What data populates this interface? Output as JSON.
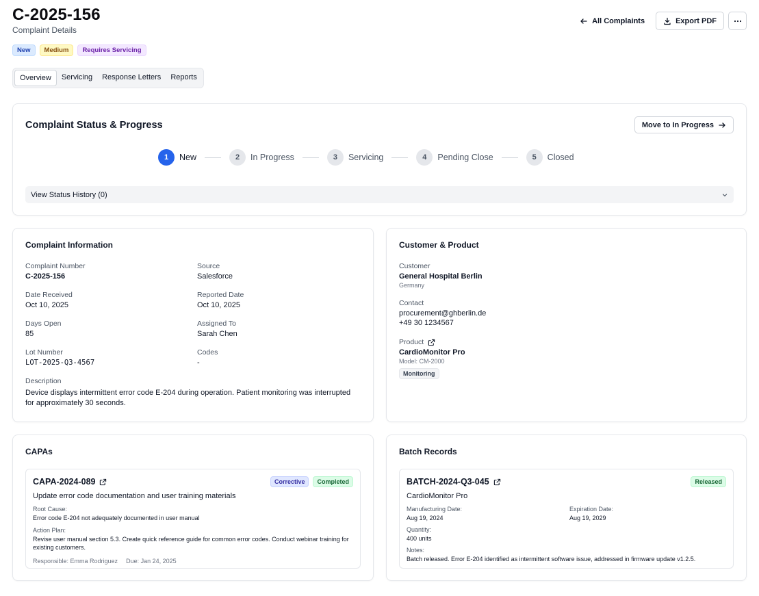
{
  "header": {
    "title": "C-2025-156",
    "subtitle": "Complaint Details"
  },
  "badges": [
    "New",
    "Medium",
    "Requires Servicing"
  ],
  "actions": {
    "back_label": "All Complaints",
    "export_label": "Export PDF"
  },
  "tabs": [
    "Overview",
    "Servicing",
    "Response Letters",
    "Reports"
  ],
  "status": {
    "title": "Complaint Status & Progress",
    "move_label": "Move to In Progress",
    "steps": [
      {
        "num": "1",
        "label": "New"
      },
      {
        "num": "2",
        "label": "In Progress"
      },
      {
        "num": "3",
        "label": "Servicing"
      },
      {
        "num": "4",
        "label": "Pending Close"
      },
      {
        "num": "5",
        "label": "Closed"
      }
    ],
    "history_label": "View Status History (0)"
  },
  "info": {
    "title": "Complaint Information",
    "complaint_number_label": "Complaint Number",
    "complaint_number": "C-2025-156",
    "source_label": "Source",
    "source": "Salesforce",
    "date_received_label": "Date Received",
    "date_received": "Oct 10, 2025",
    "reported_date_label": "Reported Date",
    "reported_date": "Oct 10, 2025",
    "days_open_label": "Days Open",
    "days_open": "85",
    "assigned_label": "Assigned To",
    "assigned": "Sarah Chen",
    "lot_label": "Lot Number",
    "lot": "LOT-2025-Q3-4567",
    "codes_label": "Codes",
    "codes": "-",
    "description_label": "Description",
    "description": "Device displays intermittent error code E-204 during operation. Patient monitoring was interrupted for approximately 30 seconds."
  },
  "customer": {
    "title": "Customer & Product",
    "customer_label": "Customer",
    "customer_name": "General Hospital Berlin",
    "country": "Germany",
    "contact_label": "Contact",
    "email": "procurement@ghberlin.de",
    "phone": "+49 30 1234567",
    "product_label": "Product",
    "product_name": "CardioMonitor Pro",
    "model": "Model: CM-2000",
    "category": "Monitoring"
  },
  "capas": {
    "title": "CAPAs",
    "item": {
      "id": "CAPA-2024-089",
      "type": "Corrective",
      "status": "Completed",
      "title": "Update error code documentation and user training materials",
      "root_cause_label": "Root Cause:",
      "root_cause": "Error code E-204 not adequately documented in user manual",
      "action_plan_label": "Action Plan:",
      "action_plan": "Revise user manual section 5.3. Create quick reference guide for common error codes. Conduct webinar training for existing customers.",
      "responsible": "Responsible: Emma Rodriguez",
      "due": "Due: Jan 24, 2025"
    }
  },
  "batches": {
    "title": "Batch Records",
    "item": {
      "id": "BATCH-2024-Q3-045",
      "status": "Released",
      "product": "CardioMonitor Pro",
      "mfg_label": "Manufacturing Date:",
      "mfg": "Aug 19, 2024",
      "exp_label": "Expiration Date:",
      "exp": "Aug 19, 2029",
      "qty_label": "Quantity:",
      "qty": "400 units",
      "notes_label": "Notes:",
      "notes": "Batch released. Error E-204 identified as intermittent software issue, addressed in firmware update v1.2.5."
    }
  },
  "colors": {
    "accent": "#2563eb"
  }
}
